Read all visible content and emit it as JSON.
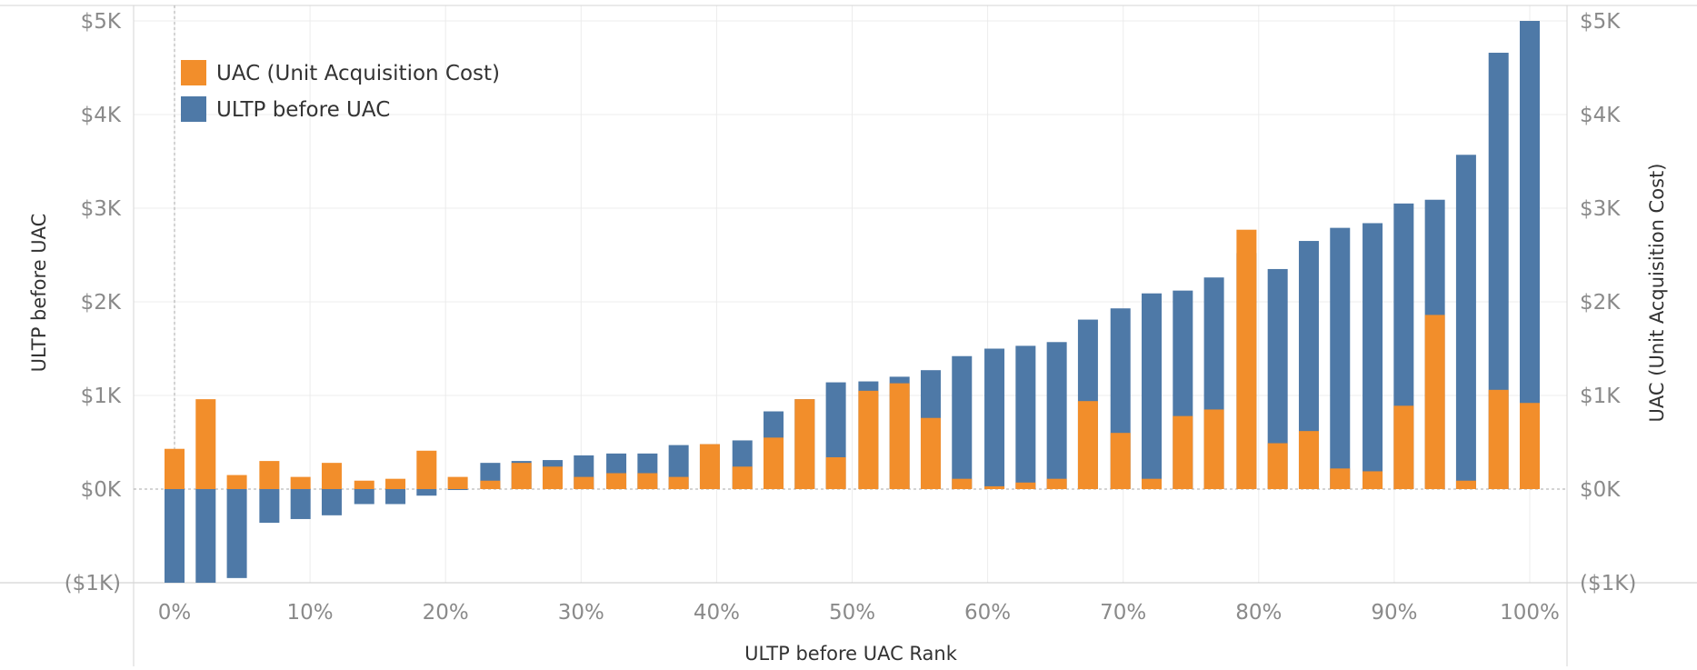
{
  "chart_data": {
    "type": "bar",
    "xlabel": "ULTP before UAC Rank",
    "ylabel_left": "ULTP before UAC",
    "ylabel_right": "UAC (Unit Acquisition Cost)",
    "ylim": [
      -1000,
      5000
    ],
    "y_ticks": [
      {
        "value": 5000,
        "label": "$5K"
      },
      {
        "value": 4000,
        "label": "$4K"
      },
      {
        "value": 3000,
        "label": "$3K"
      },
      {
        "value": 2000,
        "label": "$2K"
      },
      {
        "value": 1000,
        "label": "$1K"
      },
      {
        "value": 0,
        "label": "$0K"
      },
      {
        "value": -1000,
        "label": "($1K)"
      }
    ],
    "xlim": [
      0,
      100
    ],
    "x_ticks": [
      {
        "value": 0,
        "label": "0%"
      },
      {
        "value": 10,
        "label": "10%"
      },
      {
        "value": 20,
        "label": "20%"
      },
      {
        "value": 30,
        "label": "30%"
      },
      {
        "value": 40,
        "label": "40%"
      },
      {
        "value": 50,
        "label": "50%"
      },
      {
        "value": 60,
        "label": "60%"
      },
      {
        "value": 70,
        "label": "70%"
      },
      {
        "value": 80,
        "label": "80%"
      },
      {
        "value": 90,
        "label": "90%"
      },
      {
        "value": 100,
        "label": "100%"
      }
    ],
    "legend_position": "top-left",
    "grid": true,
    "x": [
      0,
      2.3,
      4.6,
      7,
      9.3,
      11.6,
      14,
      16.3,
      18.6,
      20.9,
      23.3,
      25.6,
      27.9,
      30.2,
      32.6,
      34.9,
      37.2,
      39.5,
      41.9,
      44.2,
      46.5,
      48.8,
      51.2,
      53.5,
      55.8,
      58.1,
      60.5,
      62.8,
      65.1,
      67.4,
      69.8,
      72.1,
      74.4,
      76.7,
      79.1,
      81.4,
      83.7,
      86,
      88.4,
      90.7,
      93,
      95.3,
      97.7,
      100
    ],
    "series": [
      {
        "name": "UAC (Unit Acquisition Cost)",
        "color": "#f28e2b",
        "values": [
          430,
          960,
          150,
          300,
          130,
          280,
          90,
          110,
          410,
          130,
          90,
          280,
          240,
          130,
          170,
          170,
          130,
          480,
          240,
          550,
          960,
          340,
          1050,
          1130,
          760,
          110,
          30,
          70,
          110,
          940,
          600,
          110,
          780,
          850,
          2770,
          490,
          620,
          220,
          190,
          890,
          1860,
          90,
          1060,
          920
        ]
      },
      {
        "name": "ULTP before UAC",
        "color": "#4e79a7",
        "values": [
          -1000,
          -1000,
          -950,
          -360,
          -320,
          -280,
          -160,
          -160,
          -70,
          -10,
          280,
          300,
          310,
          360,
          380,
          380,
          470,
          480,
          520,
          830,
          960,
          1140,
          1150,
          1200,
          1270,
          1420,
          1500,
          1530,
          1570,
          1810,
          1930,
          2090,
          2120,
          2260,
          2520,
          2350,
          2650,
          2790,
          2840,
          3050,
          3090,
          3570,
          4660,
          5000
        ]
      }
    ]
  }
}
